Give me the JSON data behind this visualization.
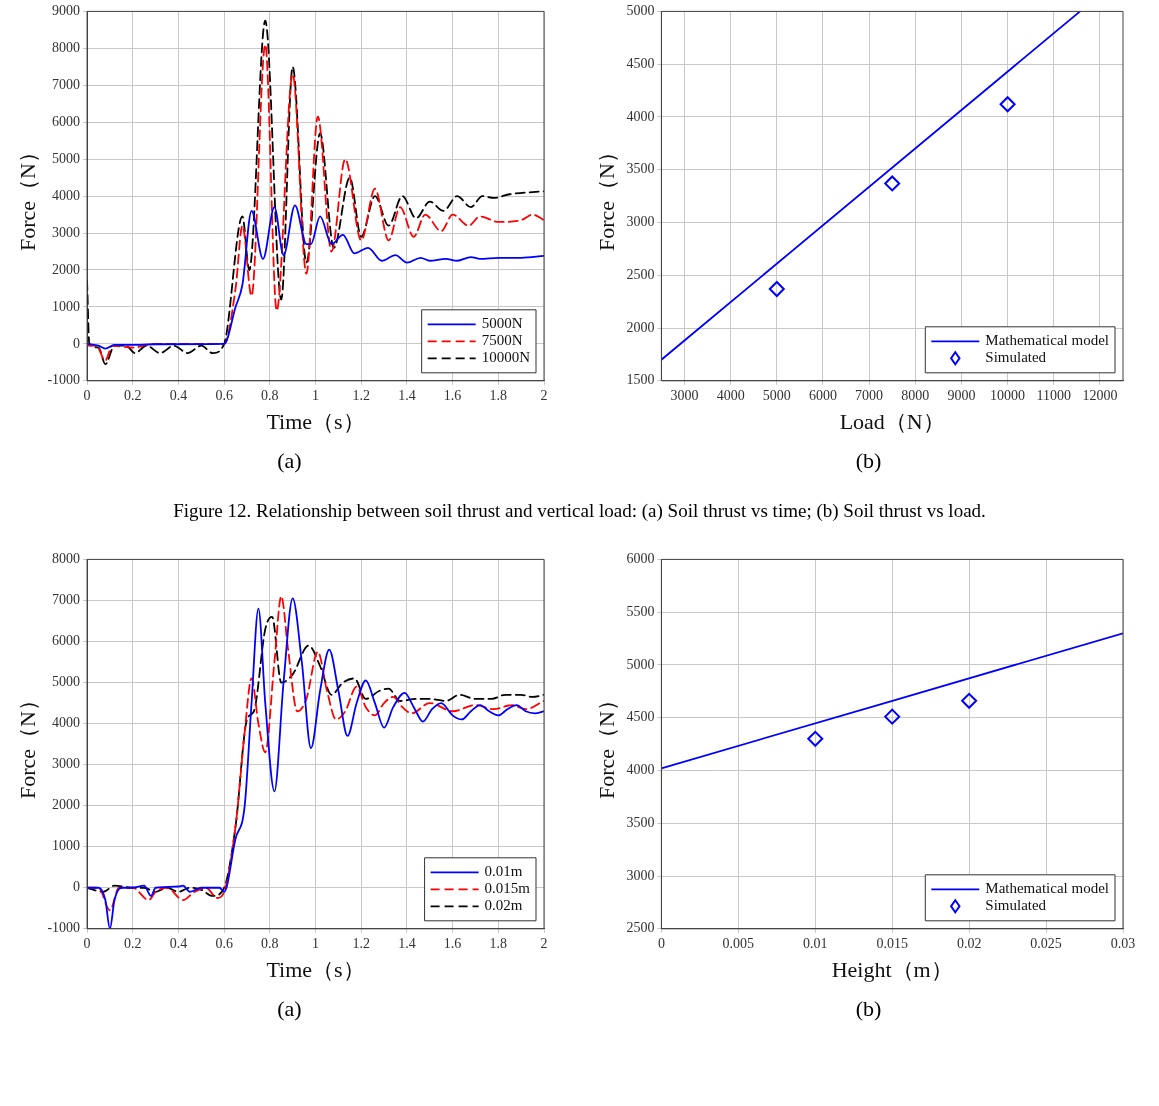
{
  "chart_data": [
    {
      "type": "line",
      "xlabel": "Time（s）",
      "ylabel": "Force（N）",
      "xlim": [
        0,
        2
      ],
      "ylim": [
        -1000,
        9000
      ],
      "xticks": [
        0,
        0.2,
        0.4,
        0.6,
        0.8,
        1,
        1.2,
        1.4,
        1.6,
        1.8,
        2
      ],
      "yticks": [
        -1000,
        0,
        1000,
        2000,
        3000,
        4000,
        5000,
        6000,
        7000,
        8000,
        9000
      ],
      "grid": true,
      "legend": "bottom right",
      "marker": "none",
      "annotations": [
        "(a)",
        "Figure 12. Relationship between soil thrust and vertical load: (a) Soil thrust vs time; (b) Soil thrust vs load."
      ],
      "series": [
        {
          "name": "5000N",
          "color": "#0000ff",
          "line_style": "solid",
          "x": [
            0,
            0.05,
            0.08,
            0.12,
            0.2,
            0.3,
            0.6,
            0.65,
            0.68,
            0.72,
            0.77,
            0.82,
            0.86,
            0.91,
            0.96,
            0.98,
            1.02,
            1.07,
            1.12,
            1.17,
            1.23,
            1.29,
            1.35,
            1.4,
            1.46,
            1.5,
            1.57,
            1.62,
            1.68,
            1.72,
            1.8,
            1.9,
            2
          ],
          "values": [
            0,
            -50,
            -130,
            -30,
            -30,
            -10,
            0,
            1000,
            1600,
            3600,
            2300,
            3700,
            2400,
            3750,
            2700,
            2700,
            3450,
            2700,
            2950,
            2450,
            2600,
            2250,
            2400,
            2200,
            2330,
            2250,
            2300,
            2250,
            2350,
            2300,
            2330,
            2330,
            2380
          ]
        },
        {
          "name": "7500N",
          "color": "#ff0000",
          "line_style": "dashed",
          "x": [
            0,
            0.04,
            0.08,
            0.11,
            0.2,
            0.3,
            0.6,
            0.65,
            0.68,
            0.72,
            0.78,
            0.83,
            0.9,
            0.96,
            1.01,
            1.07,
            1.13,
            1.2,
            1.26,
            1.32,
            1.37,
            1.43,
            1.48,
            1.55,
            1.6,
            1.67,
            1.72,
            1.8,
            1.9,
            1.95,
            2
          ],
          "values": [
            -50,
            -50,
            -450,
            -50,
            -100,
            0,
            0,
            1500,
            3200,
            1300,
            8100,
            900,
            7300,
            1900,
            6150,
            2500,
            5000,
            2800,
            4200,
            2800,
            3700,
            2900,
            3500,
            3050,
            3500,
            3200,
            3450,
            3300,
            3350,
            3500,
            3350
          ]
        },
        {
          "name": "10000N",
          "color": "#000000",
          "line_style": "dashed",
          "x": [
            0,
            0.01,
            0.05,
            0.08,
            0.12,
            0.17,
            0.21,
            0.26,
            0.32,
            0.38,
            0.44,
            0.5,
            0.55,
            0.6,
            0.68,
            0.71,
            0.78,
            0.85,
            0.9,
            0.96,
            1.02,
            1.08,
            1.15,
            1.2,
            1.26,
            1.32,
            1.38,
            1.44,
            1.5,
            1.56,
            1.62,
            1.68,
            1.73,
            1.78,
            1.85,
            2
          ],
          "values": [
            1700,
            0,
            -100,
            -550,
            -50,
            -50,
            -250,
            -50,
            -250,
            -50,
            -250,
            -50,
            -250,
            0,
            3450,
            2000,
            8750,
            1200,
            7500,
            2200,
            5700,
            2600,
            4500,
            2900,
            4000,
            3200,
            4000,
            3400,
            3850,
            3600,
            4000,
            3700,
            4000,
            3950,
            4050,
            4130
          ]
        }
      ]
    },
    {
      "type": "line",
      "xlabel": "Load（N）",
      "ylabel": "Force（N）",
      "xlim": [
        2500,
        12500
      ],
      "ylim": [
        1500,
        5000
      ],
      "xticks": [
        3000,
        4000,
        5000,
        6000,
        7000,
        8000,
        9000,
        10000,
        11000,
        12000
      ],
      "yticks": [
        1500,
        2000,
        2500,
        3000,
        3500,
        4000,
        4500,
        5000
      ],
      "grid": true,
      "legend": "bottom right",
      "annotations": [
        "(b)"
      ],
      "series": [
        {
          "name": "Mathematical model",
          "color": "#0000ff",
          "type": "line",
          "marker": "none",
          "line_style": "solid",
          "x": [
            2500,
            11570
          ],
          "values": [
            1700,
            5000
          ]
        },
        {
          "name": "Simulated",
          "color": "#0000ff",
          "type": "scatter",
          "marker": "diamond",
          "x": [
            5000,
            7500,
            10000
          ],
          "values": [
            2370,
            3370,
            4120
          ]
        }
      ]
    },
    {
      "type": "line",
      "xlabel": "Time（s）",
      "ylabel": "Force（N）",
      "xlim": [
        0,
        2
      ],
      "ylim": [
        -1000,
        8000
      ],
      "xticks": [
        0,
        0.2,
        0.4,
        0.6,
        0.8,
        1,
        1.2,
        1.4,
        1.6,
        1.8,
        2
      ],
      "yticks": [
        -1000,
        0,
        1000,
        2000,
        3000,
        4000,
        5000,
        6000,
        7000,
        8000
      ],
      "grid": true,
      "legend": "bottom right",
      "marker": "none",
      "annotations": [
        "(a)"
      ],
      "series": [
        {
          "name": "0.01m",
          "color": "#0000ff",
          "line_style": "solid",
          "x": [
            0,
            0.05,
            0.08,
            0.1,
            0.12,
            0.15,
            0.2,
            0.25,
            0.28,
            0.3,
            0.4,
            0.42,
            0.45,
            0.5,
            0.58,
            0.6,
            0.65,
            0.69,
            0.72,
            0.75,
            0.78,
            0.82,
            0.86,
            0.9,
            0.94,
            0.98,
            1.02,
            1.06,
            1.1,
            1.14,
            1.18,
            1.22,
            1.26,
            1.3,
            1.34,
            1.39,
            1.43,
            1.47,
            1.51,
            1.55,
            1.6,
            1.64,
            1.68,
            1.72,
            1.76,
            1.8,
            1.84,
            1.88,
            1.92,
            1.96,
            2
          ],
          "values": [
            0,
            0,
            -300,
            -1000,
            -300,
            0,
            0,
            50,
            -200,
            0,
            30,
            50,
            -100,
            0,
            0,
            -100,
            1200,
            2000,
            4500,
            6800,
            4500,
            2350,
            5000,
            7050,
            5500,
            3400,
            4800,
            5800,
            4800,
            3700,
            4500,
            5050,
            4500,
            3900,
            4400,
            4750,
            4400,
            4050,
            4350,
            4500,
            4200,
            4100,
            4300,
            4450,
            4300,
            4200,
            4350,
            4450,
            4300,
            4250,
            4300
          ]
        },
        {
          "name": "0.015m",
          "color": "#ff0000",
          "line_style": "dashed",
          "x": [
            0,
            0.05,
            0.1,
            0.14,
            0.2,
            0.27,
            0.3,
            0.35,
            0.42,
            0.47,
            0.52,
            0.57,
            0.6,
            0.65,
            0.69,
            0.72,
            0.75,
            0.78,
            0.82,
            0.85,
            0.88,
            0.92,
            0.96,
            1.01,
            1.05,
            1.09,
            1.13,
            1.18,
            1.22,
            1.26,
            1.3,
            1.34,
            1.38,
            1.42,
            1.5,
            1.6,
            1.7,
            1.78,
            1.86,
            1.92,
            2
          ],
          "values": [
            0,
            0,
            -550,
            0,
            0,
            -300,
            -100,
            0,
            -300,
            -100,
            0,
            -250,
            -100,
            1500,
            3800,
            5100,
            4000,
            3300,
            5500,
            7100,
            5800,
            4300,
            4600,
            5750,
            4800,
            4100,
            4300,
            4900,
            4400,
            4200,
            4500,
            4650,
            4400,
            4250,
            4500,
            4300,
            4450,
            4350,
            4450,
            4350,
            4550
          ]
        },
        {
          "name": "0.02m",
          "color": "#000000",
          "line_style": "dashed",
          "x": [
            0,
            0.07,
            0.12,
            0.2,
            0.25,
            0.3,
            0.35,
            0.4,
            0.45,
            0.5,
            0.55,
            0.6,
            0.65,
            0.7,
            0.73,
            0.78,
            0.81,
            0.85,
            0.9,
            0.97,
            1.02,
            1.07,
            1.12,
            1.17,
            1.22,
            1.28,
            1.32,
            1.37,
            1.44,
            1.5,
            1.57,
            1.63,
            1.7,
            1.77,
            1.83,
            1.9,
            1.95,
            2
          ],
          "values": [
            0,
            -100,
            50,
            0,
            0,
            -100,
            0,
            -100,
            0,
            -50,
            -200,
            0,
            1500,
            4100,
            4300,
            6300,
            6600,
            5000,
            5200,
            5900,
            5400,
            4700,
            5000,
            5100,
            4600,
            4800,
            4850,
            4550,
            4600,
            4600,
            4550,
            4700,
            4600,
            4600,
            4700,
            4700,
            4650,
            4700
          ]
        }
      ]
    },
    {
      "type": "line",
      "xlabel": "Height（m）",
      "ylabel": "Force（N）",
      "xlim": [
        0,
        0.03
      ],
      "ylim": [
        2500,
        6000
      ],
      "xticks": [
        0,
        0.005,
        0.01,
        0.015,
        0.02,
        0.025,
        0.03
      ],
      "yticks": [
        2500,
        3000,
        3500,
        4000,
        4500,
        5000,
        5500,
        6000
      ],
      "grid": true,
      "legend": "bottom right",
      "annotations": [
        "(b)"
      ],
      "series": [
        {
          "name": "Mathematical model",
          "color": "#0000ff",
          "type": "line",
          "marker": "none",
          "line_style": "solid",
          "x": [
            0,
            0.03
          ],
          "values": [
            4020,
            5300
          ]
        },
        {
          "name": "Simulated",
          "color": "#0000ff",
          "type": "scatter",
          "marker": "diamond",
          "x": [
            0.01,
            0.015,
            0.02
          ],
          "values": [
            4300,
            4510,
            4660
          ]
        }
      ]
    }
  ]
}
